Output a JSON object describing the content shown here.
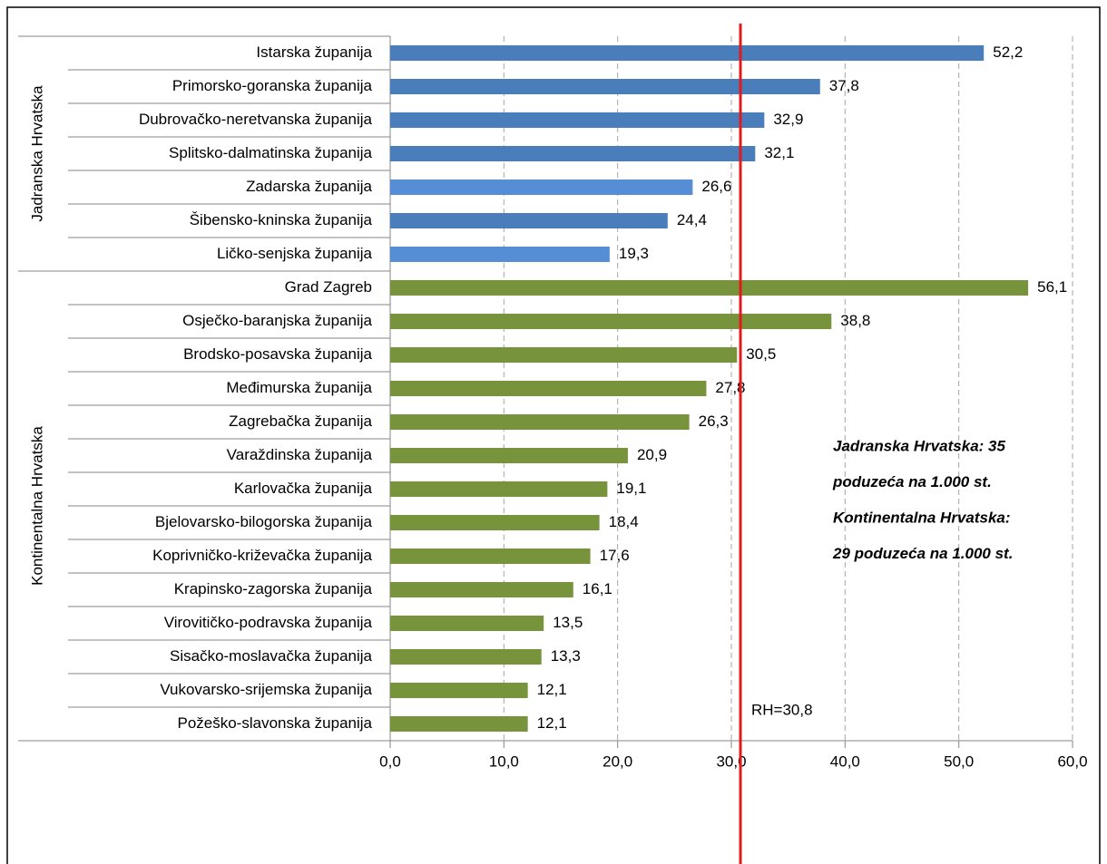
{
  "chart_data": {
    "type": "bar",
    "orientation": "horizontal",
    "series": [
      {
        "name": "Jadranska Hrvatska",
        "categories": [
          "Istarska županija",
          "Primorsko-goranska županija",
          "Dubrovačko-neretvanska županija",
          "Splitsko-dalmatinska županija",
          "Zadarska županija",
          "Šibensko-kninska županija",
          "Ličko-senjska županija"
        ],
        "values": [
          52.2,
          37.8,
          32.9,
          32.1,
          26.6,
          24.4,
          19.3
        ],
        "value_labels": [
          "52,2",
          "37,8",
          "32,9",
          "32,1",
          "26,6",
          "24,4",
          "19,3"
        ],
        "colors": [
          "#4a7ebb",
          "#4a7ebb",
          "#4a7ebb",
          "#4a7ebb",
          "#558ed5",
          "#4a7ebb",
          "#558ed5"
        ],
        "label_color": "#558ed5"
      },
      {
        "name": "Kontinentalna Hrvatska",
        "categories": [
          "Grad Zagreb",
          "Osječko-baranjska županija",
          "Brodsko-posavska županija",
          "Međimurska županija",
          "Zagrebačka županija",
          "Varaždinska županija",
          "Karlovačka županija",
          "Bjelovarsko-bilogorska županija",
          "Koprivničko-križevačka županija",
          "Krapinsko-zagorska županija",
          "Virovitičko-podravska županija",
          "Sisačko-moslavačka županija",
          "Vukovarsko-srijemska županija",
          "Požeško-slavonska županija"
        ],
        "values": [
          56.1,
          38.8,
          30.5,
          27.8,
          26.3,
          20.9,
          19.1,
          18.4,
          17.6,
          16.1,
          13.5,
          13.3,
          12.1,
          12.1
        ],
        "value_labels": [
          "56,1",
          "38,8",
          "30,5",
          "27,8",
          "26,3",
          "20,9",
          "19,1",
          "18,4",
          "17,6",
          "16,1",
          "13,5",
          "13,3",
          "12,1",
          "12,1"
        ],
        "colors": [
          "#77933c",
          "#77933c",
          "#77933c",
          "#77933c",
          "#77933c",
          "#77933c",
          "#77933c",
          "#77933c",
          "#77933c",
          "#77933c",
          "#77933c",
          "#77933c",
          "#77933c",
          "#77933c"
        ],
        "label_color": "#77933c"
      }
    ],
    "xlim": [
      0,
      60
    ],
    "xticks": [
      {
        "value": 0,
        "label": "0,0"
      },
      {
        "value": 10,
        "label": "10,0"
      },
      {
        "value": 20,
        "label": "20,0"
      },
      {
        "value": 30,
        "label": "30,0"
      },
      {
        "value": 40,
        "label": "40,0"
      },
      {
        "value": 50,
        "label": "50,0"
      },
      {
        "value": 60,
        "label": "60,0"
      }
    ],
    "grid": true,
    "reference_line": {
      "value": 30.8,
      "label": "RH=30,8",
      "color": "#e31a1c"
    },
    "annotations": [
      {
        "lines": [
          "Jadranska Hrvatska: 35",
          "poduzeća na 1.000 st."
        ],
        "color": "#558ed5"
      },
      {
        "lines": [
          "Kontinentalna Hrvatska:",
          "29 poduzeća na 1.000 st."
        ],
        "color": "#77933c"
      }
    ]
  }
}
